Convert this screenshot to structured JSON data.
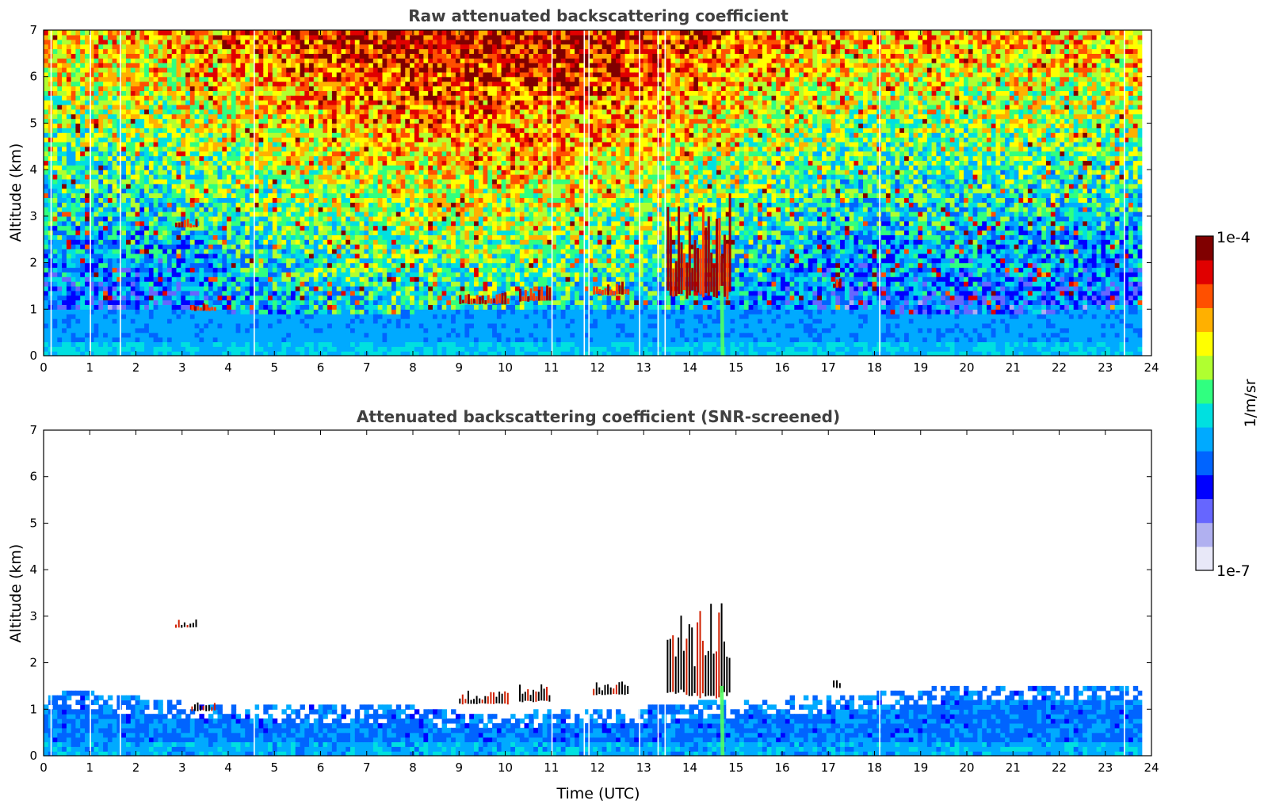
{
  "chart_data": [
    {
      "type": "heatmap",
      "title": "Raw attenuated backscattering coefficient",
      "xlabel": "",
      "ylabel": "Altitude (km)",
      "xlim": [
        0,
        24
      ],
      "ylim": [
        0,
        7
      ],
      "xticks": [
        "0",
        "1",
        "2",
        "3",
        "4",
        "5",
        "6",
        "7",
        "8",
        "9",
        "10",
        "11",
        "12",
        "13",
        "14",
        "15",
        "16",
        "17",
        "18",
        "19",
        "20",
        "21",
        "22",
        "23",
        "24"
      ],
      "yticks": [
        "0",
        "1",
        "2",
        "3",
        "4",
        "5",
        "6",
        "7"
      ],
      "data_end_hour": 23.8,
      "boundary_layer_top_km": [
        [
          0,
          1.0
        ],
        [
          2,
          1.0
        ],
        [
          3,
          0.95
        ],
        [
          4,
          0.9
        ],
        [
          6,
          0.85
        ],
        [
          8,
          0.9
        ],
        [
          10,
          0.95
        ],
        [
          12,
          0.95
        ],
        [
          14,
          1.0
        ],
        [
          16,
          0.95
        ],
        [
          18,
          0.9
        ],
        [
          20,
          0.9
        ],
        [
          22,
          0.9
        ],
        [
          23.8,
          0.95
        ]
      ],
      "clouds": [
        {
          "start_h": 2.85,
          "end_h": 3.35,
          "base_km": 2.75,
          "top_km": 2.95
        },
        {
          "start_h": 3.2,
          "end_h": 3.75,
          "base_km": 0.95,
          "top_km": 1.2
        },
        {
          "start_h": 9.0,
          "end_h": 10.1,
          "base_km": 1.1,
          "top_km": 1.4
        },
        {
          "start_h": 10.3,
          "end_h": 11.0,
          "base_km": 1.15,
          "top_km": 1.55
        },
        {
          "start_h": 11.9,
          "end_h": 12.7,
          "base_km": 1.3,
          "top_km": 1.6
        },
        {
          "start_h": 13.5,
          "end_h": 14.5,
          "base_km": 1.2,
          "top_km": 3.4
        },
        {
          "start_h": 14.5,
          "end_h": 14.9,
          "base_km": 1.2,
          "top_km": 3.6
        },
        {
          "start_h": 17.1,
          "end_h": 17.3,
          "base_km": 1.45,
          "top_km": 1.7
        }
      ],
      "precipitation_streak_h": 14.65,
      "data_gaps_h": [
        0.15,
        1.0,
        1.65,
        4.55,
        11.0,
        11.7,
        11.8,
        12.9,
        13.3,
        13.45,
        18.1,
        23.4
      ]
    },
    {
      "type": "heatmap",
      "title": "Attenuated backscattering coefficient (SNR-screened)",
      "xlabel": "Time (UTC)",
      "ylabel": "Altitude (km)",
      "xlim": [
        0,
        24
      ],
      "ylim": [
        0,
        7
      ],
      "xticks": [
        "0",
        "1",
        "2",
        "3",
        "4",
        "5",
        "6",
        "7",
        "8",
        "9",
        "10",
        "11",
        "12",
        "13",
        "14",
        "15",
        "16",
        "17",
        "18",
        "19",
        "20",
        "21",
        "22",
        "23",
        "24"
      ],
      "yticks": [
        "0",
        "1",
        "2",
        "3",
        "4",
        "5",
        "6",
        "7"
      ],
      "screened_layer_top_km": [
        [
          0,
          1.35
        ],
        [
          1,
          1.3
        ],
        [
          2,
          1.2
        ],
        [
          3,
          1.1
        ],
        [
          4,
          1.1
        ],
        [
          5,
          1.05
        ],
        [
          6,
          1.0
        ],
        [
          7,
          1.05
        ],
        [
          8,
          1.0
        ],
        [
          9,
          0.9
        ],
        [
          10,
          0.85
        ],
        [
          11,
          1.0
        ],
        [
          12,
          1.0
        ],
        [
          13,
          1.0
        ],
        [
          14,
          1.1
        ],
        [
          15,
          1.15
        ],
        [
          16,
          1.2
        ],
        [
          17,
          1.25
        ],
        [
          18,
          1.3
        ],
        [
          19,
          1.4
        ],
        [
          20,
          1.45
        ],
        [
          21,
          1.45
        ],
        [
          22,
          1.5
        ],
        [
          23,
          1.5
        ],
        [
          23.8,
          1.5
        ]
      ]
    }
  ],
  "colorbar": {
    "max_label": "1e-4",
    "min_label": "1e-7",
    "unit_label": "1/m/sr",
    "colors": [
      "#e8e8f8",
      "#b0b0f0",
      "#6666ff",
      "#0000ff",
      "#0064ff",
      "#00aaff",
      "#00e0e0",
      "#30ff80",
      "#b0ff30",
      "#ffff00",
      "#ffb000",
      "#ff5000",
      "#e00000",
      "#800000"
    ]
  }
}
